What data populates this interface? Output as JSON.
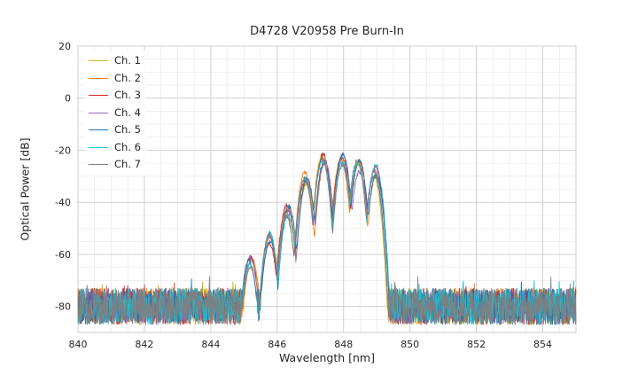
{
  "chart_data": {
    "type": "line",
    "title": "D4728 V20958 Pre Burn-In",
    "xlabel": "Wavelength [nm]",
    "ylabel": "Optical Power [dB]",
    "xlim": [
      840,
      855
    ],
    "ylim": [
      -90,
      20
    ],
    "xticks": [
      840,
      842,
      844,
      846,
      848,
      850,
      852,
      854
    ],
    "yticks": [
      20,
      0,
      -20,
      -40,
      -60,
      -80
    ],
    "x_minor_step": 0.5,
    "y_minor_step": 5,
    "grid": {
      "major_color": "#cccccc",
      "minor_color": "#e6e6e6",
      "frame_color": "#cccccc"
    },
    "legend_position": "upper-left",
    "series": [
      {
        "name": "Ch. 1",
        "color": "#bcbd22"
      },
      {
        "name": "Ch. 2",
        "color": "#ff7f0e"
      },
      {
        "name": "Ch. 3",
        "color": "#d62728"
      },
      {
        "name": "Ch. 4",
        "color": "#9467bd"
      },
      {
        "name": "Ch. 5",
        "color": "#1f77b4"
      },
      {
        "name": "Ch. 6",
        "color": "#17becf"
      },
      {
        "name": "Ch. 7",
        "color": "#7f7f7f"
      }
    ],
    "spectrum": {
      "description": "Laser diode optical spectra, 7 overlaid channels: broadband noise floor near -80 dB across 840-855 nm, multi-mode signal lobe between ~845 and ~849.1 nm peaking near -23 dB around 847.4-848 nm",
      "noise_floor_dB": -80,
      "noise_amplitude_dB": 7,
      "signal_window_nm": [
        845.7,
        849.05
      ],
      "signal_floor_dB": -84,
      "signal_noise_amplitude_dB": 3,
      "mode_width_coeff_dB_per_nm2": 300,
      "modes": [
        {
          "wl": 845.2,
          "peak": -63
        },
        {
          "wl": 845.75,
          "peak": -54
        },
        {
          "wl": 846.3,
          "peak": -43
        },
        {
          "wl": 846.85,
          "peak": -31
        },
        {
          "wl": 847.4,
          "peak": -24
        },
        {
          "wl": 847.93,
          "peak": -23.5
        },
        {
          "wl": 848.45,
          "peak": -26
        },
        {
          "wl": 848.95,
          "peak": -28
        }
      ],
      "channel_wavelength_jitter_nm": 0.05,
      "channel_peak_jitter_dB": 2.5
    }
  }
}
